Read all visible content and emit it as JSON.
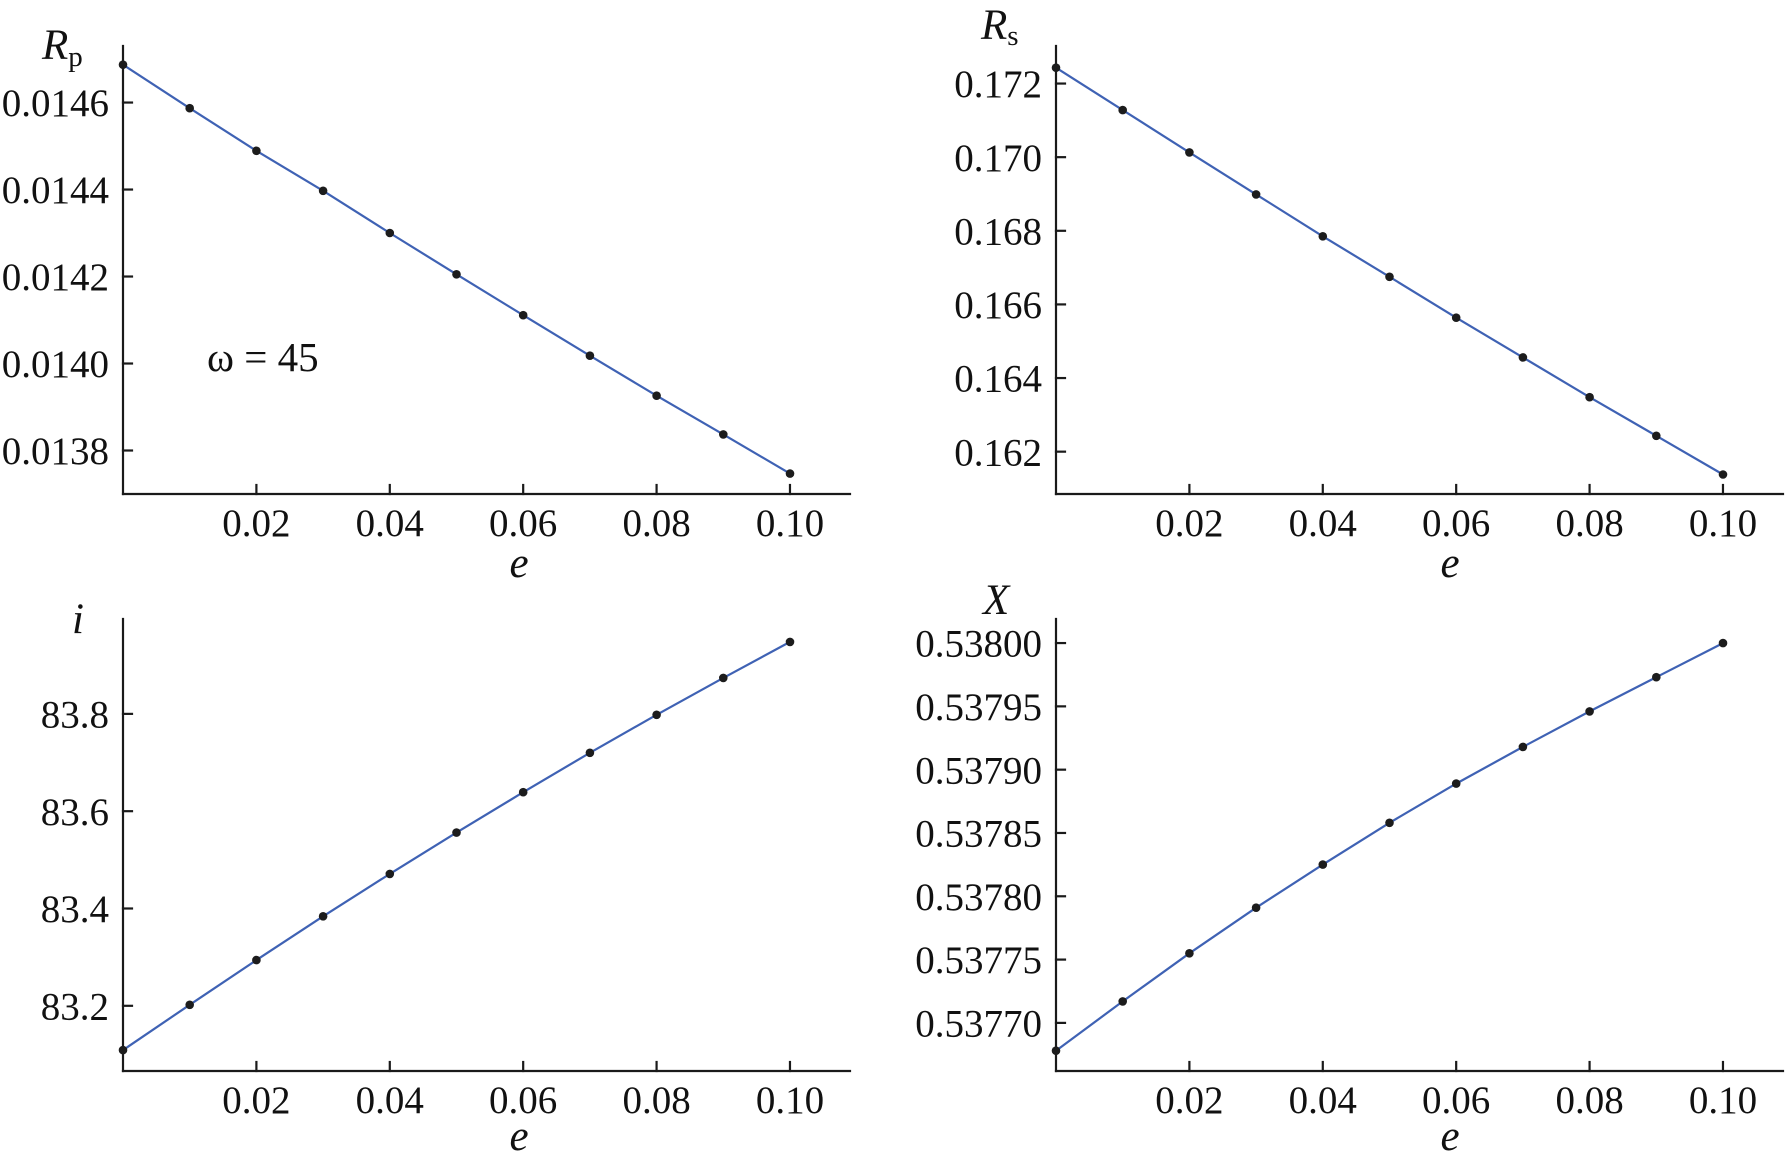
{
  "colors": {
    "line": "#3f62b4",
    "marker": "#1c1c1c",
    "axis": "#1a1a1a",
    "background": "#ffffff"
  },
  "chart_data": [
    {
      "type": "line",
      "xlabel": "e",
      "ylabel": "R",
      "ylabel_subscript": "p",
      "x": [
        0,
        0.01,
        0.02,
        0.03,
        0.04,
        0.05,
        0.06,
        0.07,
        0.08,
        0.09,
        0.1
      ],
      "y": [
        0.014687,
        0.014587,
        0.014489,
        0.014397,
        0.0143,
        0.014205,
        0.014111,
        0.014018,
        0.013926,
        0.013837,
        0.013747
      ],
      "xticks": [
        "0.02",
        "0.04",
        "0.06",
        "0.08",
        "0.10"
      ],
      "yticks": [
        "0.0138",
        "0.0140",
        "0.0142",
        "0.0144",
        "0.0146"
      ],
      "xlim": [
        0,
        0.109
      ],
      "ylim": [
        0.0137,
        0.01473
      ],
      "grid": false,
      "markers": "circle",
      "annotations": [
        "ω = 45"
      ]
    },
    {
      "type": "line",
      "xlabel": "e",
      "ylabel": "R",
      "ylabel_subscript": "s",
      "x": [
        0,
        0.01,
        0.02,
        0.03,
        0.04,
        0.05,
        0.06,
        0.07,
        0.08,
        0.09,
        0.1
      ],
      "y": [
        0.17243,
        0.17128,
        0.17013,
        0.16899,
        0.16785,
        0.16675,
        0.16564,
        0.16456,
        0.16348,
        0.16243,
        0.16138
      ],
      "xticks": [
        "0.02",
        "0.04",
        "0.06",
        "0.08",
        "0.10"
      ],
      "yticks": [
        "0.162",
        "0.164",
        "0.166",
        "0.168",
        "0.170",
        "0.172"
      ],
      "xlim": [
        0,
        0.109
      ],
      "ylim": [
        0.16085,
        0.17302
      ],
      "grid": false,
      "markers": "circle"
    },
    {
      "type": "line",
      "xlabel": "e",
      "ylabel": "i",
      "x": [
        0,
        0.01,
        0.02,
        0.03,
        0.04,
        0.05,
        0.06,
        0.07,
        0.08,
        0.09,
        0.1
      ],
      "y": [
        83.109,
        83.202,
        83.294,
        83.384,
        83.471,
        83.556,
        83.639,
        83.72,
        83.798,
        83.874,
        83.948
      ],
      "xticks": [
        "0.02",
        "0.04",
        "0.06",
        "0.08",
        "0.10"
      ],
      "yticks": [
        "83.2",
        "83.4",
        "83.6",
        "83.8"
      ],
      "xlim": [
        0,
        0.109
      ],
      "ylim": [
        83.066,
        83.995
      ],
      "grid": false,
      "markers": "circle"
    },
    {
      "type": "line",
      "xlabel": "e",
      "ylabel": "X",
      "x": [
        0,
        0.01,
        0.02,
        0.03,
        0.04,
        0.05,
        0.06,
        0.07,
        0.08,
        0.09,
        0.1
      ],
      "y": [
        0.537678,
        0.537717,
        0.537755,
        0.537791,
        0.537825,
        0.537858,
        0.537889,
        0.537918,
        0.537946,
        0.537973,
        0.538
      ],
      "xticks": [
        "0.02",
        "0.04",
        "0.06",
        "0.08",
        "0.10"
      ],
      "yticks": [
        "0.53770",
        "0.53775",
        "0.53780",
        "0.53785",
        "0.53790",
        "0.53795",
        "0.53800"
      ],
      "xlim": [
        0,
        0.109
      ],
      "ylim": [
        0.537662,
        0.538019
      ],
      "grid": false,
      "markers": "circle"
    }
  ]
}
